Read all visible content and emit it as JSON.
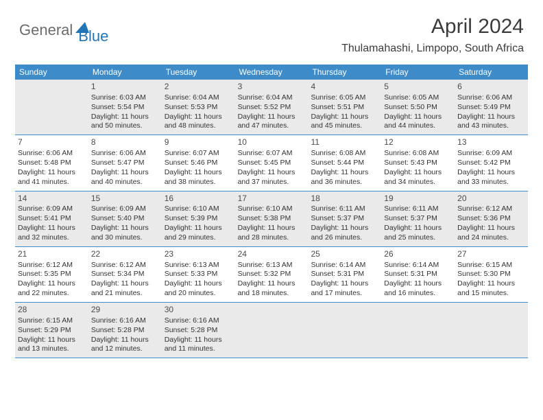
{
  "logo": {
    "gray": "General",
    "blue": "Blue"
  },
  "title": "April 2024",
  "location": "Thulamahashi, Limpopo, South Africa",
  "headers": [
    "Sunday",
    "Monday",
    "Tuesday",
    "Wednesday",
    "Thursday",
    "Friday",
    "Saturday"
  ],
  "colors": {
    "header_bg": "#3e8bc9",
    "header_text": "#ffffff",
    "shaded_bg": "#eaeaea",
    "border": "#3e8bc9",
    "logo_gray": "#6b6b6b",
    "logo_blue": "#2176b8",
    "text": "#333333"
  },
  "start_offset": 1,
  "shaded_rows": [
    0,
    2,
    4
  ],
  "days": [
    {
      "n": "1",
      "sr": "6:03 AM",
      "ss": "5:54 PM",
      "dl": "11 hours and 50 minutes."
    },
    {
      "n": "2",
      "sr": "6:04 AM",
      "ss": "5:53 PM",
      "dl": "11 hours and 48 minutes."
    },
    {
      "n": "3",
      "sr": "6:04 AM",
      "ss": "5:52 PM",
      "dl": "11 hours and 47 minutes."
    },
    {
      "n": "4",
      "sr": "6:05 AM",
      "ss": "5:51 PM",
      "dl": "11 hours and 45 minutes."
    },
    {
      "n": "5",
      "sr": "6:05 AM",
      "ss": "5:50 PM",
      "dl": "11 hours and 44 minutes."
    },
    {
      "n": "6",
      "sr": "6:06 AM",
      "ss": "5:49 PM",
      "dl": "11 hours and 43 minutes."
    },
    {
      "n": "7",
      "sr": "6:06 AM",
      "ss": "5:48 PM",
      "dl": "11 hours and 41 minutes."
    },
    {
      "n": "8",
      "sr": "6:06 AM",
      "ss": "5:47 PM",
      "dl": "11 hours and 40 minutes."
    },
    {
      "n": "9",
      "sr": "6:07 AM",
      "ss": "5:46 PM",
      "dl": "11 hours and 38 minutes."
    },
    {
      "n": "10",
      "sr": "6:07 AM",
      "ss": "5:45 PM",
      "dl": "11 hours and 37 minutes."
    },
    {
      "n": "11",
      "sr": "6:08 AM",
      "ss": "5:44 PM",
      "dl": "11 hours and 36 minutes."
    },
    {
      "n": "12",
      "sr": "6:08 AM",
      "ss": "5:43 PM",
      "dl": "11 hours and 34 minutes."
    },
    {
      "n": "13",
      "sr": "6:09 AM",
      "ss": "5:42 PM",
      "dl": "11 hours and 33 minutes."
    },
    {
      "n": "14",
      "sr": "6:09 AM",
      "ss": "5:41 PM",
      "dl": "11 hours and 32 minutes."
    },
    {
      "n": "15",
      "sr": "6:09 AM",
      "ss": "5:40 PM",
      "dl": "11 hours and 30 minutes."
    },
    {
      "n": "16",
      "sr": "6:10 AM",
      "ss": "5:39 PM",
      "dl": "11 hours and 29 minutes."
    },
    {
      "n": "17",
      "sr": "6:10 AM",
      "ss": "5:38 PM",
      "dl": "11 hours and 28 minutes."
    },
    {
      "n": "18",
      "sr": "6:11 AM",
      "ss": "5:37 PM",
      "dl": "11 hours and 26 minutes."
    },
    {
      "n": "19",
      "sr": "6:11 AM",
      "ss": "5:37 PM",
      "dl": "11 hours and 25 minutes."
    },
    {
      "n": "20",
      "sr": "6:12 AM",
      "ss": "5:36 PM",
      "dl": "11 hours and 24 minutes."
    },
    {
      "n": "21",
      "sr": "6:12 AM",
      "ss": "5:35 PM",
      "dl": "11 hours and 22 minutes."
    },
    {
      "n": "22",
      "sr": "6:12 AM",
      "ss": "5:34 PM",
      "dl": "11 hours and 21 minutes."
    },
    {
      "n": "23",
      "sr": "6:13 AM",
      "ss": "5:33 PM",
      "dl": "11 hours and 20 minutes."
    },
    {
      "n": "24",
      "sr": "6:13 AM",
      "ss": "5:32 PM",
      "dl": "11 hours and 18 minutes."
    },
    {
      "n": "25",
      "sr": "6:14 AM",
      "ss": "5:31 PM",
      "dl": "11 hours and 17 minutes."
    },
    {
      "n": "26",
      "sr": "6:14 AM",
      "ss": "5:31 PM",
      "dl": "11 hours and 16 minutes."
    },
    {
      "n": "27",
      "sr": "6:15 AM",
      "ss": "5:30 PM",
      "dl": "11 hours and 15 minutes."
    },
    {
      "n": "28",
      "sr": "6:15 AM",
      "ss": "5:29 PM",
      "dl": "11 hours and 13 minutes."
    },
    {
      "n": "29",
      "sr": "6:16 AM",
      "ss": "5:28 PM",
      "dl": "11 hours and 12 minutes."
    },
    {
      "n": "30",
      "sr": "6:16 AM",
      "ss": "5:28 PM",
      "dl": "11 hours and 11 minutes."
    }
  ],
  "labels": {
    "sunrise": "Sunrise:",
    "sunset": "Sunset:",
    "daylight": "Daylight:"
  }
}
